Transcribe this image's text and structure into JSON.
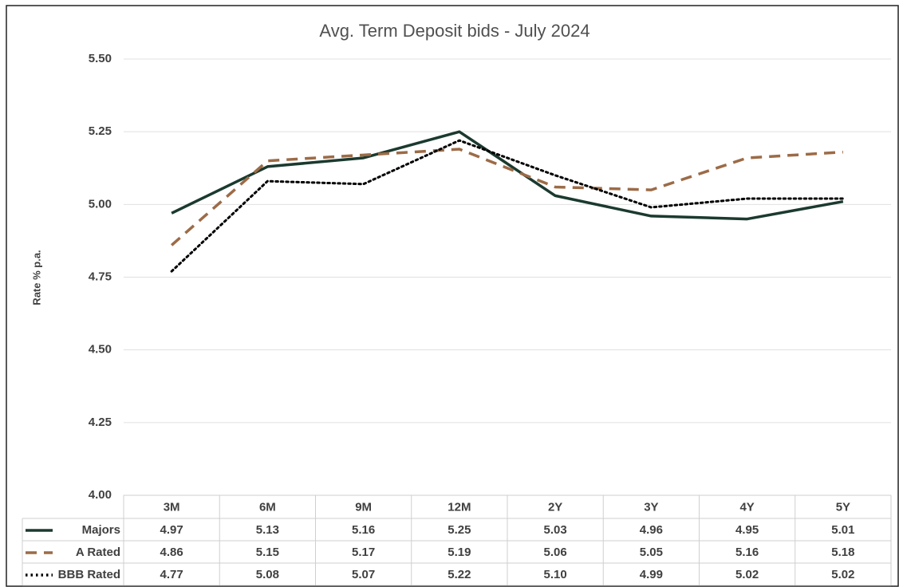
{
  "chart_data": {
    "type": "line",
    "title": "Avg. Term Deposit bids - July 2024",
    "y_label": "Rate % p.a.",
    "categories": [
      "3M",
      "6M",
      "9M",
      "12M",
      "2Y",
      "3Y",
      "4Y",
      "5Y"
    ],
    "series": [
      {
        "name": "Majors",
        "color": "#1b3a2f",
        "style": "solid",
        "values": [
          4.97,
          5.13,
          5.16,
          5.25,
          5.03,
          4.96,
          4.95,
          5.01
        ],
        "value_labels": [
          "4.97",
          "5.13",
          "5.16",
          "5.25",
          "5.03",
          "4.96",
          "4.95",
          "5.01"
        ]
      },
      {
        "name": "A Rated",
        "color": "#9c6b47",
        "style": "dashed",
        "values": [
          4.86,
          5.15,
          5.17,
          5.19,
          5.06,
          5.05,
          5.16,
          5.18
        ],
        "value_labels": [
          "4.86",
          "5.15",
          "5.17",
          "5.19",
          "5.06",
          "5.05",
          "5.16",
          "5.18"
        ]
      },
      {
        "name": "BBB Rated",
        "color": "#000000",
        "style": "dotted",
        "values": [
          4.77,
          5.08,
          5.07,
          5.22,
          5.1,
          4.99,
          5.02,
          5.02
        ],
        "value_labels": [
          "4.77",
          "5.08",
          "5.07",
          "5.22",
          "5.10",
          "4.99",
          "5.02",
          "5.02"
        ]
      }
    ],
    "ylim": [
      4,
      5.5
    ],
    "yticks": [
      {
        "value": 4,
        "label": "4.00"
      },
      {
        "value": 4.25,
        "label": "4.25"
      },
      {
        "value": 4.5,
        "label": "4.50"
      },
      {
        "value": 4.75,
        "label": "4.75"
      },
      {
        "value": 5,
        "label": "5.00"
      },
      {
        "value": 5.25,
        "label": "5.25"
      },
      {
        "value": 5.5,
        "label": "5.50"
      }
    ],
    "grid": true
  }
}
